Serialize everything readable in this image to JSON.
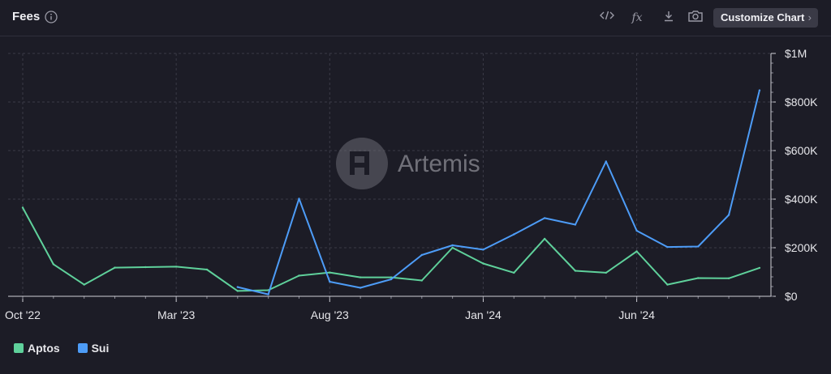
{
  "header": {
    "title": "Fees",
    "customize_label": "Customize Chart",
    "icons": [
      "info-icon",
      "embed-code-icon",
      "formula-icon",
      "download-icon",
      "camera-icon",
      "chevron-right-icon"
    ]
  },
  "watermark": "Artemis",
  "colors": {
    "background": "#1c1c26",
    "aptos": "#5fd19b",
    "sui": "#4d9cf7",
    "grid": "#3a3a46"
  },
  "chart_data": {
    "type": "line",
    "title": "Fees",
    "x": [
      "2022-10",
      "2022-11",
      "2022-12",
      "2023-01",
      "2023-02",
      "2023-03",
      "2023-04",
      "2023-05",
      "2023-06",
      "2023-07",
      "2023-08",
      "2023-09",
      "2023-10",
      "2023-11",
      "2023-12",
      "2024-01",
      "2024-02",
      "2024-03",
      "2024-04",
      "2024-05",
      "2024-06",
      "2024-07",
      "2024-08",
      "2024-09",
      "2024-10"
    ],
    "x_tick_labels": [
      "Oct '22",
      "Mar '23",
      "Aug '23",
      "Jan '24",
      "Jun '24"
    ],
    "x_tick_positions": [
      0,
      5,
      10,
      15,
      20
    ],
    "y_tick_labels": [
      "$0",
      "$200K",
      "$400K",
      "$600K",
      "$800K",
      "$1M"
    ],
    "ylim": [
      0,
      1000000
    ],
    "grid": true,
    "legend_position": "bottom-left",
    "series": [
      {
        "name": "Aptos",
        "color": "#5fd19b",
        "values": [
          365000,
          132000,
          48000,
          118000,
          120000,
          122000,
          110000,
          22000,
          25000,
          85000,
          98000,
          78000,
          78000,
          65000,
          200000,
          135000,
          97000,
          237000,
          105000,
          97000,
          185000,
          48000,
          75000,
          74000,
          117000
        ]
      },
      {
        "name": "Sui",
        "color": "#4d9cf7",
        "values": [
          null,
          null,
          null,
          null,
          null,
          null,
          null,
          38000,
          8000,
          402000,
          60000,
          35000,
          70000,
          170000,
          210000,
          192000,
          255000,
          322000,
          295000,
          555000,
          270000,
          203000,
          205000,
          335000,
          848000
        ]
      }
    ]
  }
}
